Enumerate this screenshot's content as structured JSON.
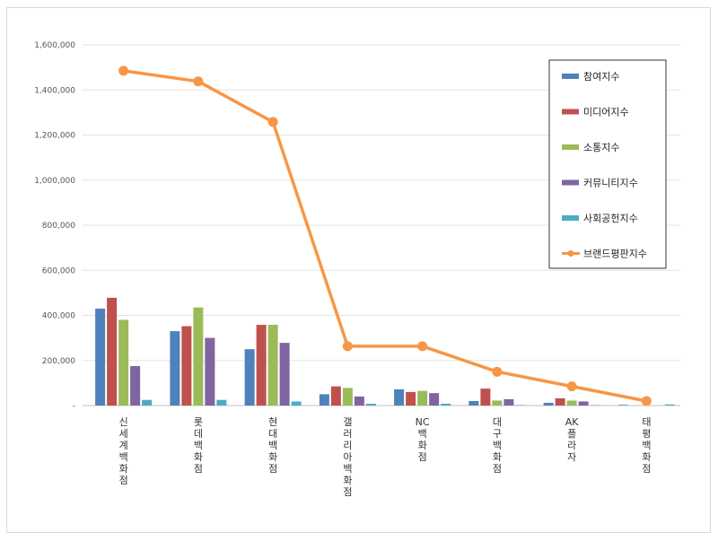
{
  "chart_data": {
    "type": "bar",
    "categories": [
      "신세계백화점",
      "롯데백화점",
      "현대백화점",
      "갤러리아백화점",
      "NC백화점",
      "대구백화점",
      "AK플라자",
      "태평백화점"
    ],
    "series": [
      {
        "name": "참여지수",
        "values": [
          430000,
          330000,
          250000,
          50000,
          72000,
          20000,
          12000,
          3000
        ],
        "color": "#4f81bd"
      },
      {
        "name": "미디어지수",
        "values": [
          478000,
          352000,
          358000,
          85000,
          60000,
          75000,
          32000,
          0
        ],
        "color": "#c0504d"
      },
      {
        "name": "소통지수",
        "values": [
          380000,
          435000,
          358000,
          78000,
          65000,
          22000,
          22000,
          0
        ],
        "color": "#9bbb59"
      },
      {
        "name": "커뮤니티지수",
        "values": [
          175000,
          300000,
          278000,
          40000,
          55000,
          28000,
          18000,
          0
        ],
        "color": "#8064a2"
      },
      {
        "name": "사회공헌지수",
        "values": [
          25000,
          25000,
          18000,
          8000,
          8000,
          2000,
          2000,
          5000
        ],
        "color": "#4bacc6"
      }
    ],
    "line_series": {
      "name": "브랜드평판지수",
      "values": [
        1485000,
        1438000,
        1258000,
        263000,
        263000,
        150000,
        85000,
        20000
      ],
      "color": "#f79646"
    },
    "ylim": [
      0,
      1600000
    ],
    "yticks": [
      "-",
      "200,000",
      "400,000",
      "600,000",
      "800,000",
      "1,000,000",
      "1,200,000",
      "1,400,000",
      "1,600,000"
    ],
    "grid": true,
    "legend": "top-right"
  }
}
